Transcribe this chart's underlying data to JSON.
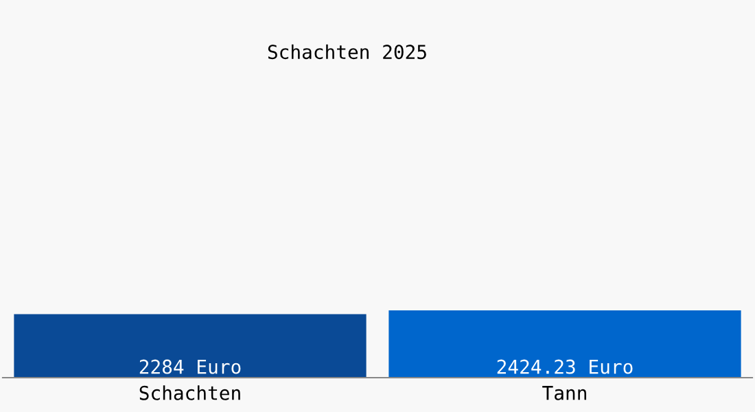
{
  "chart_data": {
    "type": "bar",
    "title": "Schachten 2025",
    "categories": [
      "Schachten",
      "Tann"
    ],
    "values": [
      2284,
      2424.23
    ],
    "colors": [
      "#0a4a96",
      "#0066cc"
    ],
    "value_labels": [
      "2284 Euro",
      "2424.23 Euro"
    ],
    "grid": false,
    "legend": false
  }
}
